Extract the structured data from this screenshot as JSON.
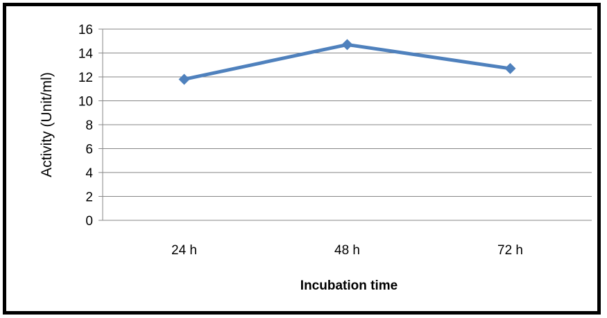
{
  "chart_data": {
    "type": "line",
    "categories": [
      "24 h",
      "48 h",
      "72 h"
    ],
    "series": [
      {
        "values": [
          11.8,
          14.7,
          12.7
        ]
      }
    ],
    "title": "",
    "xlabel": "Incubation time",
    "ylabel": "Activity (Unit/ml)",
    "ylim": [
      0,
      16
    ],
    "yticks": [
      "0",
      "2",
      "4",
      "6",
      "8",
      "10",
      "12",
      "14",
      "16"
    ],
    "grid": true,
    "legend": "none",
    "colors": {
      "line": "#4F81BD",
      "marker": "#4F81BD",
      "grid": "#868686",
      "frame": "#000000"
    },
    "marker_icon": "diamond-marker-icon"
  }
}
